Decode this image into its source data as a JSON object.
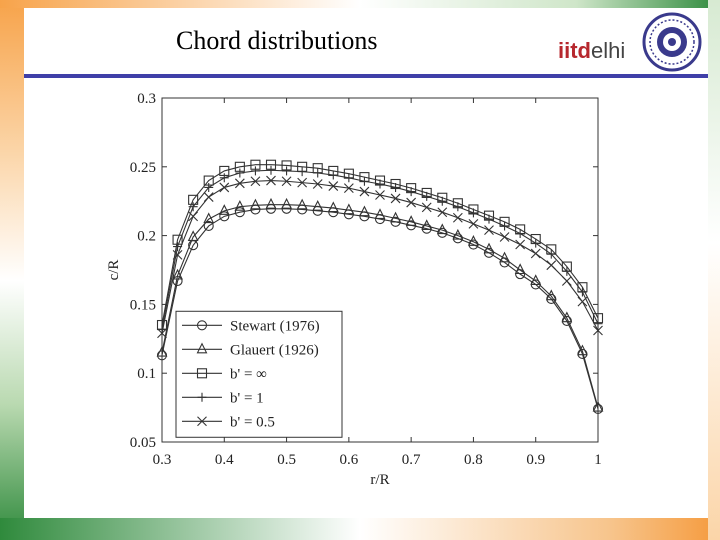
{
  "slide": {
    "title": "Chord distributions",
    "logo": {
      "part1": "iitd",
      "part2": "elhi",
      "seal_icon": "institute-seal-icon"
    }
  },
  "colors": {
    "title_rule": "#3f3fa8",
    "logo_red": "#b7282e"
  },
  "chart_data": {
    "type": "line",
    "xlabel": "r/R",
    "ylabel": "c/R",
    "xlim": [
      0.3,
      1.0
    ],
    "ylim": [
      0.05,
      0.3
    ],
    "xticks": [
      0.3,
      0.4,
      0.5,
      0.6,
      0.7,
      0.8,
      0.9,
      1.0
    ],
    "xtick_labels": [
      "0.3",
      "0.4",
      "0.5",
      "0.6",
      "0.7",
      "0.8",
      "0.9",
      "1"
    ],
    "yticks": [
      0.05,
      0.1,
      0.15,
      0.2,
      0.25,
      0.3
    ],
    "ytick_labels": [
      "0.05",
      "0.1",
      "0.15",
      "0.2",
      "0.25",
      "0.3"
    ],
    "grid": false,
    "legend": "lower-left",
    "x": [
      0.3,
      0.325,
      0.35,
      0.375,
      0.4,
      0.425,
      0.45,
      0.475,
      0.5,
      0.525,
      0.55,
      0.575,
      0.6,
      0.625,
      0.65,
      0.675,
      0.7,
      0.725,
      0.75,
      0.775,
      0.8,
      0.825,
      0.85,
      0.875,
      0.9,
      0.925,
      0.95,
      0.975,
      1.0
    ],
    "series": [
      {
        "name": "Stewart (1976)",
        "marker": "circle",
        "values": [
          0.113,
          0.167,
          0.193,
          0.207,
          0.214,
          0.217,
          0.219,
          0.2195,
          0.2195,
          0.219,
          0.218,
          0.217,
          0.2155,
          0.214,
          0.212,
          0.21,
          0.2075,
          0.205,
          0.202,
          0.198,
          0.1935,
          0.1875,
          0.1805,
          0.172,
          0.1645,
          0.154,
          0.138,
          0.114,
          0.074
        ]
      },
      {
        "name": "Glauert (1926)",
        "marker": "triangle",
        "values": [
          0.115,
          0.171,
          0.199,
          0.212,
          0.218,
          0.221,
          0.222,
          0.2225,
          0.2225,
          0.222,
          0.221,
          0.22,
          0.2185,
          0.217,
          0.215,
          0.2125,
          0.21,
          0.207,
          0.204,
          0.2,
          0.1955,
          0.19,
          0.1835,
          0.175,
          0.167,
          0.156,
          0.14,
          0.116,
          0.075
        ]
      },
      {
        "name": "b' = ∞",
        "marker": "square",
        "values": [
          0.135,
          0.197,
          0.226,
          0.24,
          0.247,
          0.25,
          0.2515,
          0.2515,
          0.251,
          0.25,
          0.249,
          0.247,
          0.245,
          0.2425,
          0.24,
          0.2375,
          0.2345,
          0.231,
          0.2275,
          0.2235,
          0.219,
          0.2145,
          0.21,
          0.2045,
          0.1975,
          0.19,
          0.1775,
          0.1625,
          0.14
        ]
      },
      {
        "name": "b' = 1",
        "marker": "plus",
        "values": [
          0.132,
          0.192,
          0.221,
          0.235,
          0.242,
          0.2455,
          0.247,
          0.2475,
          0.247,
          0.2465,
          0.2455,
          0.244,
          0.242,
          0.2395,
          0.2375,
          0.235,
          0.232,
          0.2285,
          0.225,
          0.221,
          0.2165,
          0.212,
          0.207,
          0.2015,
          0.1945,
          0.1865,
          0.174,
          0.159,
          0.136
        ]
      },
      {
        "name": "b' = 0.5",
        "marker": "x",
        "values": [
          0.129,
          0.186,
          0.214,
          0.228,
          0.235,
          0.238,
          0.2395,
          0.24,
          0.2395,
          0.2385,
          0.2375,
          0.236,
          0.2345,
          0.232,
          0.2295,
          0.227,
          0.224,
          0.2205,
          0.217,
          0.213,
          0.2085,
          0.204,
          0.199,
          0.1935,
          0.187,
          0.1785,
          0.167,
          0.152,
          0.131
        ]
      }
    ]
  }
}
